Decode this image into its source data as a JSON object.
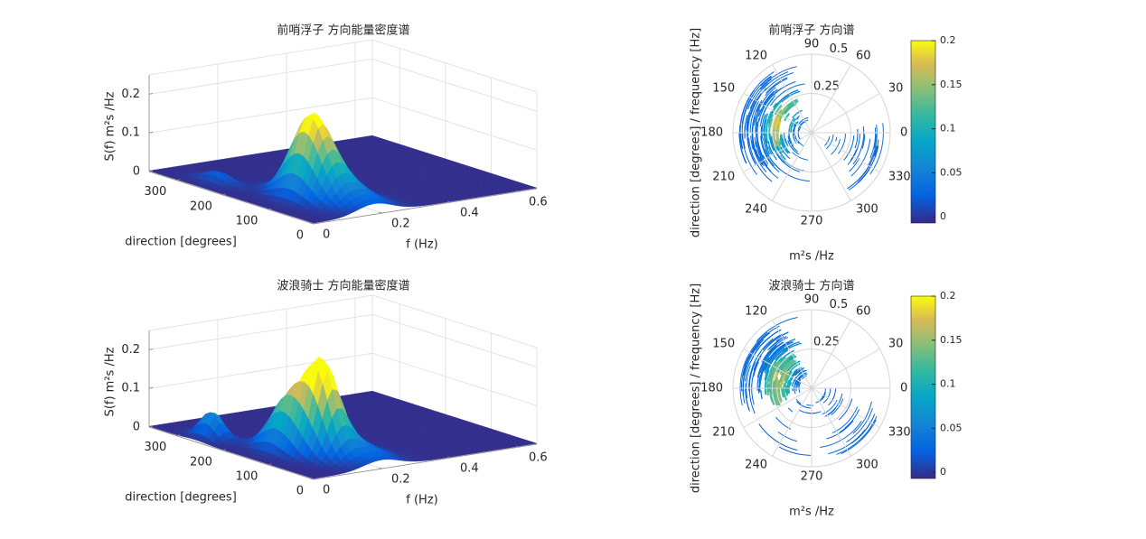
{
  "chart_data": [
    {
      "type": "surface",
      "title": "前哨浮子 方向能量密度谱",
      "xlabel": "f (Hz)",
      "ylabel": "direction [degrees]",
      "zlabel": "S(f) m²s /Hz",
      "xlim": [
        0,
        0.65
      ],
      "xticks": [
        0,
        0.2,
        0.4,
        0.6
      ],
      "ylim": [
        0,
        360
      ],
      "yticks": [
        0,
        100,
        200,
        300
      ],
      "zlim": [
        0,
        0.25
      ],
      "zticks": [
        0,
        0.1,
        0.2
      ],
      "grid": true
    },
    {
      "type": "polar",
      "title": "前哨浮子 方向谱",
      "xlabel": "m²s /Hz",
      "ylabel": "direction [degrees] / frequency [Hz]",
      "thetaticks": [
        0,
        30,
        60,
        90,
        120,
        150,
        180,
        210,
        240,
        270,
        300,
        330
      ],
      "rlim": [
        0,
        0.5
      ],
      "rticks": [
        0.25,
        0.5
      ],
      "clim": [
        -0.007,
        0.2
      ],
      "cticks": [
        0,
        0.05,
        0.1,
        0.15,
        0.2
      ]
    },
    {
      "type": "surface",
      "title": "波浪骑士 方向能量密度谱",
      "xlabel": "f (Hz)",
      "ylabel": "direction [degrees]",
      "zlabel": "S(f) m²s /Hz",
      "xlim": [
        0,
        0.65
      ],
      "xticks": [
        0,
        0.2,
        0.4,
        0.6
      ],
      "ylim": [
        0,
        360
      ],
      "yticks": [
        0,
        100,
        200,
        300
      ],
      "zlim": [
        0,
        0.25
      ],
      "zticks": [
        0,
        0.1,
        0.2
      ],
      "grid": true
    },
    {
      "type": "polar",
      "title": "波浪骑士 方向谱",
      "xlabel": "m²s /Hz",
      "ylabel": "direction [degrees] / frequency [Hz]",
      "thetaticks": [
        0,
        30,
        60,
        90,
        120,
        150,
        180,
        210,
        240,
        270,
        300,
        330
      ],
      "rlim": [
        0,
        0.5
      ],
      "rticks": [
        0.25,
        0.5
      ],
      "clim": [
        -0.007,
        0.2
      ],
      "cticks": [
        0,
        0.05,
        0.1,
        0.15,
        0.2
      ]
    }
  ]
}
